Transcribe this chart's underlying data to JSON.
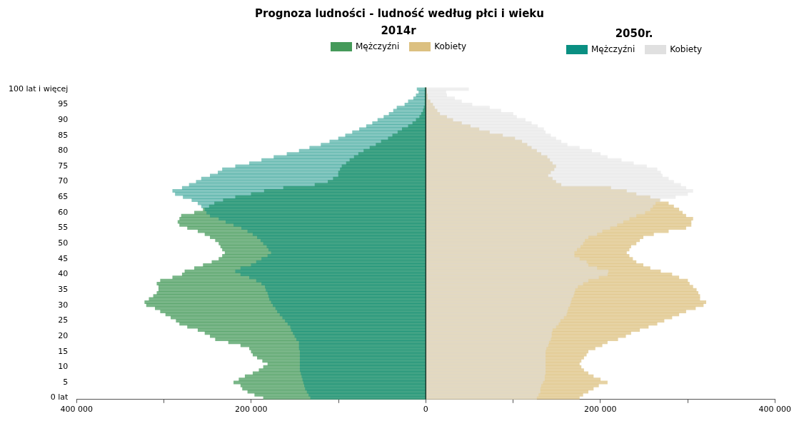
{
  "chart_data": {
    "type": "bar",
    "orientation": "horizontal",
    "title": "Prognoza ludności - ludność według płci i wieku",
    "annotations": [
      "2014r",
      "2050r."
    ],
    "legend": "top",
    "categories": [
      "100 lat i więcej",
      null,
      null,
      null,
      null,
      "95",
      null,
      null,
      null,
      null,
      "90",
      null,
      null,
      null,
      null,
      "85",
      null,
      null,
      null,
      null,
      "80",
      null,
      null,
      null,
      null,
      "75",
      null,
      null,
      null,
      null,
      "70",
      null,
      null,
      null,
      null,
      "65",
      null,
      null,
      null,
      null,
      "60",
      null,
      null,
      null,
      null,
      "55",
      null,
      null,
      null,
      null,
      "50",
      null,
      null,
      null,
      null,
      "45",
      null,
      null,
      null,
      null,
      "40",
      null,
      null,
      null,
      null,
      "35",
      null,
      null,
      null,
      null,
      "30",
      null,
      null,
      null,
      null,
      "25",
      null,
      null,
      null,
      null,
      "20",
      null,
      null,
      null,
      null,
      "15",
      null,
      null,
      null,
      null,
      "10",
      null,
      null,
      null,
      null,
      "5",
      null,
      null,
      null,
      null,
      "0 lat"
    ],
    "xlim": [
      -400000,
      400000
    ],
    "xticks": [
      {
        "value": -400000,
        "label": "400 000"
      },
      {
        "value": -300000,
        "label": null
      },
      {
        "value": -200000,
        "label": "200 000"
      },
      {
        "value": -100000,
        "label": null
      },
      0,
      {
        "value": 100000,
        "label": null
      },
      {
        "value": 200000,
        "label": "200 000"
      },
      {
        "value": 300000,
        "label": null
      },
      {
        "value": 400000,
        "label": "400 000"
      }
    ],
    "ref_lines": [
      {
        "axis": "x",
        "value": 0,
        "color": "#1f3a2f"
      }
    ],
    "series": [
      {
        "name": "Mężczyźni",
        "color": "#459a5a",
        "values": [
          -1000,
          -1000,
          -1000,
          -1000,
          -1000,
          -1000,
          -2000,
          -3000,
          -5000,
          -7000,
          -11000,
          -15000,
          -20000,
          -27000,
          -32000,
          -38000,
          -43000,
          -51000,
          -57000,
          -64000,
          -71000,
          -77000,
          -82000,
          -87000,
          -91000,
          -96000,
          -98000,
          -100000,
          -100000,
          -106000,
          -112000,
          -127000,
          -163000,
          -185000,
          -200000,
          -218000,
          -232000,
          -242000,
          -248000,
          -255000,
          -265000,
          -280000,
          -282000,
          -284000,
          -282000,
          -273000,
          -261000,
          -253000,
          -247000,
          -241000,
          -237000,
          -235000,
          -233000,
          -230000,
          -233000,
          -237000,
          -245000,
          -255000,
          -265000,
          -276000,
          -279000,
          -290000,
          -304000,
          -308000,
          -306000,
          -306000,
          -308000,
          -312000,
          -317000,
          -322000,
          -320000,
          -310000,
          -304000,
          -298000,
          -292000,
          -286000,
          -282000,
          -273000,
          -261000,
          -253000,
          -247000,
          -241000,
          -226000,
          -212000,
          -202000,
          -200000,
          -198000,
          -193000,
          -187000,
          -181000,
          -186000,
          -191000,
          -198000,
          -207000,
          -214000,
          -220000,
          -212000,
          -210000,
          -204000,
          -196000,
          -186000
        ]
      },
      {
        "name": "Kobiety",
        "color": "#dcc080",
        "values": [
          1000,
          1000,
          2000,
          2000,
          5000,
          8000,
          10000,
          13000,
          16000,
          24000,
          31000,
          41000,
          51000,
          61000,
          73000,
          88000,
          102000,
          110000,
          116000,
          121000,
          127000,
          132000,
          139000,
          142000,
          145000,
          149000,
          147000,
          143000,
          140000,
          145000,
          149000,
          155000,
          212000,
          230000,
          241000,
          257000,
          268000,
          278000,
          284000,
          290000,
          294000,
          298000,
          306000,
          304000,
          304000,
          298000,
          278000,
          261000,
          249000,
          245000,
          241000,
          235000,
          233000,
          230000,
          233000,
          237000,
          241000,
          249000,
          257000,
          269000,
          282000,
          290000,
          300000,
          302000,
          306000,
          310000,
          312000,
          314000,
          314000,
          321000,
          318000,
          309000,
          298000,
          290000,
          282000,
          273000,
          265000,
          255000,
          245000,
          235000,
          229000,
          220000,
          208000,
          202000,
          194000,
          186000,
          184000,
          181000,
          178000,
          176000,
          178000,
          181000,
          186000,
          192000,
          200000,
          208000,
          198000,
          192000,
          186000,
          180000,
          176000
        ]
      },
      {
        "name": "Mężczyźni",
        "color": "#0a8f82",
        "values": [
          -10000,
          -8000,
          -11000,
          -14000,
          -20000,
          -24000,
          -33000,
          -37000,
          -42000,
          -48000,
          -55000,
          -61000,
          -68000,
          -76000,
          -84000,
          -92000,
          -100000,
          -110000,
          -120000,
          -133000,
          -145000,
          -159000,
          -174000,
          -188000,
          -202000,
          -218000,
          -233000,
          -238000,
          -247000,
          -257000,
          -263000,
          -271000,
          -279000,
          -290000,
          -287000,
          -278000,
          -268000,
          -261000,
          -257000,
          -253000,
          -251000,
          -247000,
          -237000,
          -229000,
          -220000,
          -211000,
          -204000,
          -198000,
          -193000,
          -189000,
          -186000,
          -182000,
          -180000,
          -177000,
          -181000,
          -188000,
          -194000,
          -200000,
          -212000,
          -218000,
          -212000,
          -202000,
          -194000,
          -188000,
          -184000,
          -183000,
          -181000,
          -180000,
          -179000,
          -177000,
          -175000,
          -172000,
          -170000,
          -167000,
          -164000,
          -161000,
          -158000,
          -155000,
          -154000,
          -152000,
          -150000,
          -148000,
          -145000,
          -145000,
          -145000,
          -144000,
          -144000,
          -144000,
          -144000,
          -144000,
          -144000,
          -144000,
          -143000,
          -142000,
          -141000,
          -140000,
          -139000,
          -138000,
          -136000,
          -134000,
          -132000
        ]
      },
      {
        "name": "Kobiety",
        "color": "#e0e0e0",
        "values": [
          49000,
          23000,
          24000,
          33000,
          41000,
          53000,
          73000,
          86000,
          100000,
          104000,
          114000,
          121000,
          128000,
          135000,
          137000,
          143000,
          149000,
          155000,
          162000,
          176000,
          190000,
          200000,
          208000,
          224000,
          238000,
          253000,
          265000,
          269000,
          271000,
          278000,
          284000,
          292000,
          298000,
          306000,
          300000,
          286000,
          269000,
          263000,
          260000,
          257000,
          251000,
          241000,
          233000,
          226000,
          219000,
          211000,
          202000,
          196000,
          186000,
          182000,
          180000,
          177000,
          173000,
          170000,
          170000,
          176000,
          184000,
          186000,
          196000,
          209000,
          208000,
          198000,
          186000,
          180000,
          174000,
          171000,
          170000,
          169000,
          167000,
          166000,
          165000,
          163000,
          162000,
          161000,
          158000,
          154000,
          152000,
          149000,
          145000,
          144000,
          144000,
          143000,
          141000,
          140000,
          138000,
          137000,
          137000,
          137000,
          137000,
          137000,
          137000,
          137000,
          137000,
          136000,
          136000,
          134000,
          132000,
          131000,
          131000,
          129000,
          127000
        ]
      }
    ]
  }
}
